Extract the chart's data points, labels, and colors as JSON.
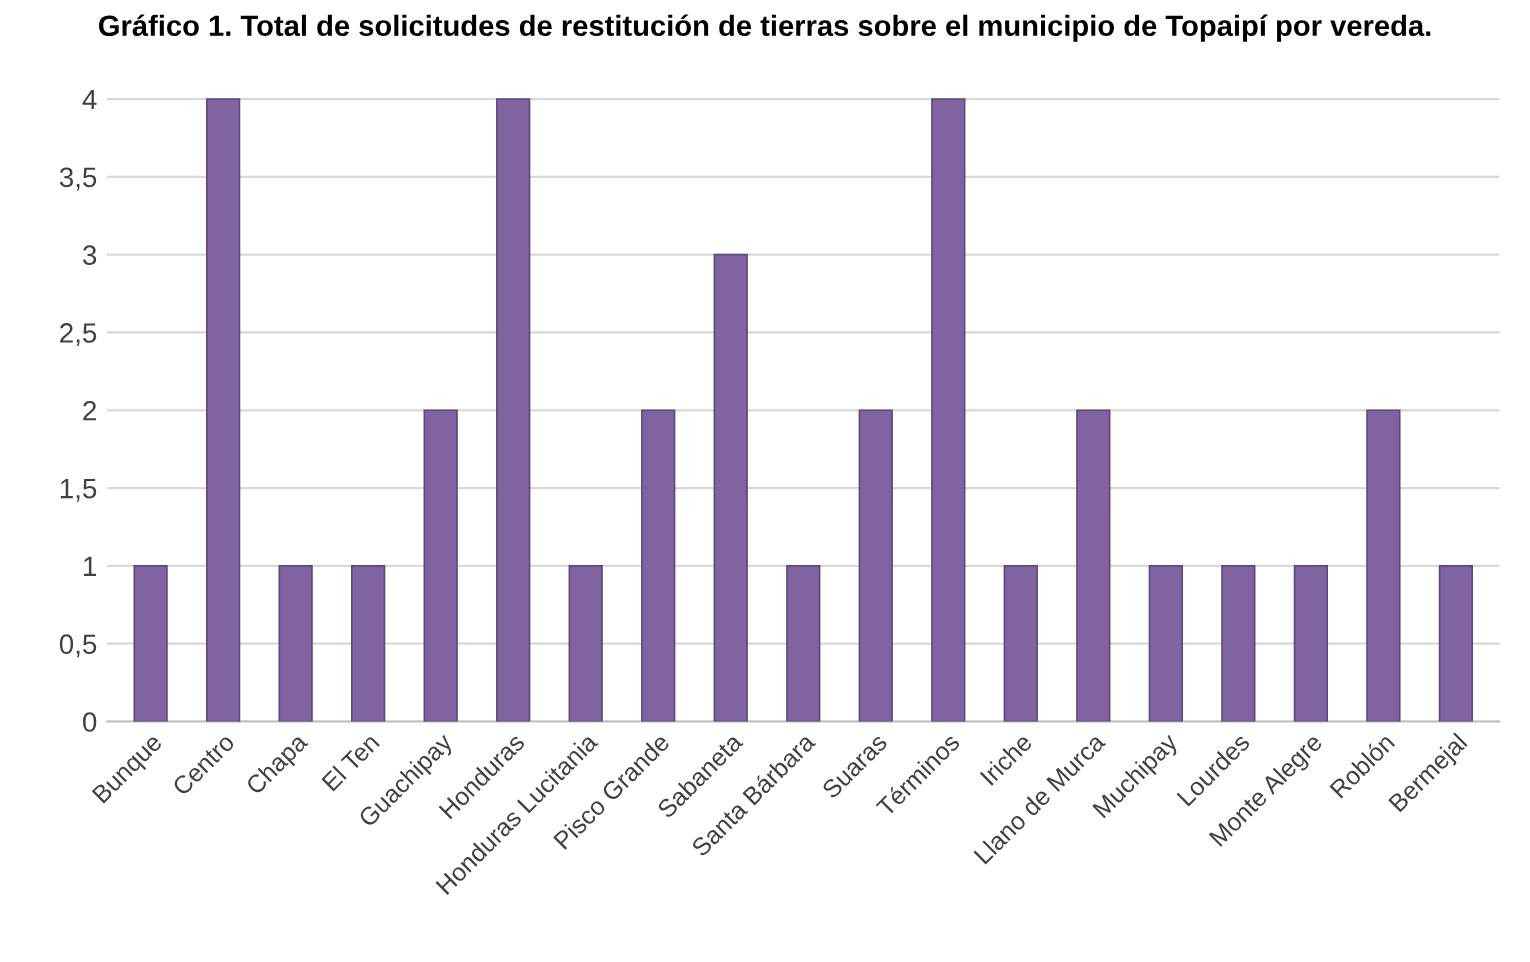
{
  "chart_data": {
    "type": "bar",
    "title": "Gráfico 1. Total de solicitudes de restitución de tierras sobre el municipio de Topaipí por vereda.",
    "categories": [
      "Bunque",
      "Centro",
      "Chapa",
      "El Ten",
      "Guachipay",
      "Honduras",
      "Honduras Lucitania",
      "Pisco Grande",
      "Sabaneta",
      "Santa Bárbara",
      "Suaras",
      "Términos",
      "Iriche",
      "Llano de Murca",
      "Muchipay",
      "Lourdes",
      "Monte Alegre",
      "Roblón",
      "Bermejal"
    ],
    "values": [
      1,
      4,
      1,
      1,
      2,
      4,
      1,
      2,
      3,
      1,
      2,
      4,
      1,
      2,
      1,
      1,
      1,
      2,
      1
    ],
    "color": "#8064a2",
    "ylim": [
      0,
      4
    ],
    "yticks": [
      0,
      {
        "value": 0.5,
        "label": "0,5"
      },
      1,
      {
        "value": 1.5,
        "label": "1,5"
      },
      2,
      {
        "value": 2.5,
        "label": "2,5"
      },
      3,
      {
        "value": 3.5,
        "label": "3,5"
      },
      4
    ],
    "grid": "y"
  }
}
